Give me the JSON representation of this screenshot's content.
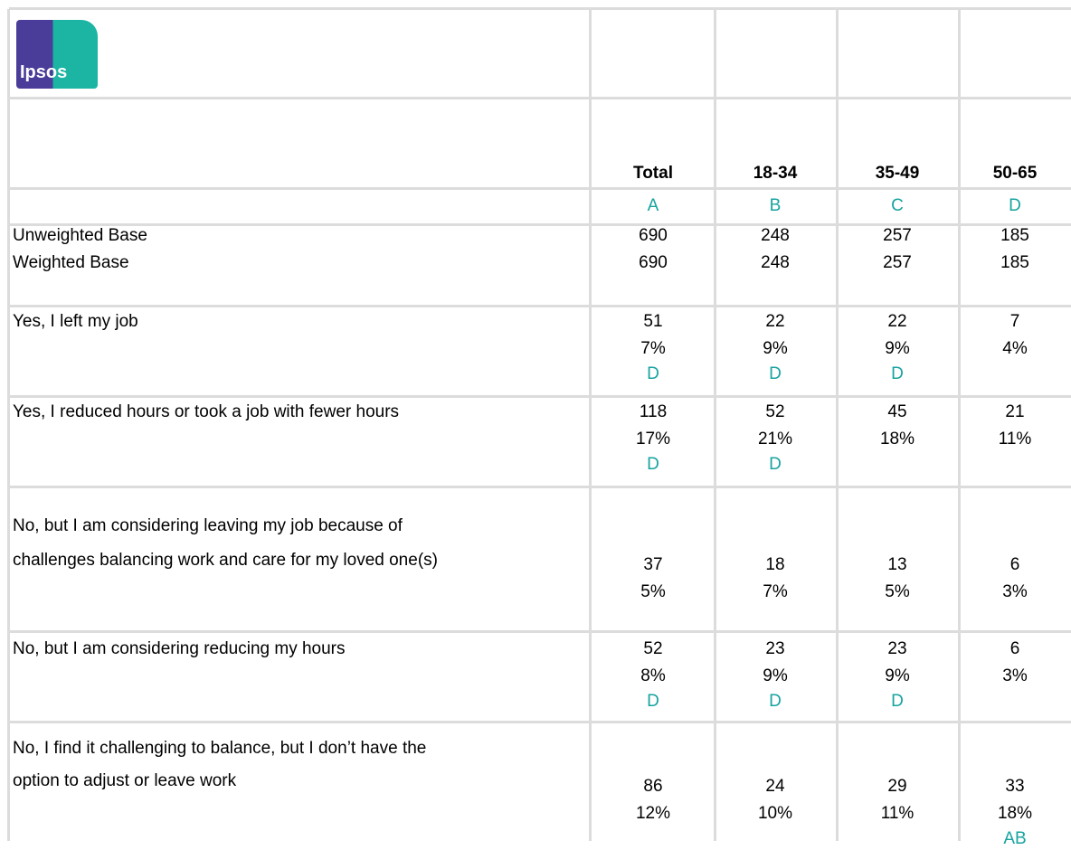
{
  "header": {
    "logo": "Ipsos"
  },
  "columns": [
    "Total",
    "18-34",
    "35-49",
    "50-65"
  ],
  "letters": [
    "A",
    "B",
    "C",
    "D"
  ],
  "bases": [
    {
      "label": "Unweighted Base",
      "values": [
        "690",
        "248",
        "257",
        "185"
      ]
    },
    {
      "label": "Weighted Base",
      "values": [
        "690",
        "248",
        "257",
        "185"
      ]
    }
  ],
  "rows": [
    {
      "label_lines": [
        "Yes, I left my job"
      ],
      "counts": [
        "51",
        "22",
        "22",
        "7"
      ],
      "percents": [
        "7%",
        "9%",
        "9%",
        "4%"
      ],
      "sig": [
        "D",
        "D",
        "D",
        null
      ]
    },
    {
      "label_lines": [
        "Yes, I reduced hours or took a job with fewer hours"
      ],
      "counts": [
        "118",
        "52",
        "45",
        "21"
      ],
      "percents": [
        "17%",
        "21%",
        "18%",
        "11%"
      ],
      "sig": [
        "D",
        "D",
        null,
        null
      ]
    },
    {
      "label_lines": [
        "No, but I am considering leaving my job because of",
        "challenges balancing work and care for my loved one(s)"
      ],
      "counts": [
        "37",
        "18",
        "13",
        "6"
      ],
      "percents": [
        "5%",
        "7%",
        "5%",
        "3%"
      ],
      "sig": [
        null,
        null,
        null,
        null
      ]
    },
    {
      "label_lines": [
        "No, but I am considering reducing my hours"
      ],
      "counts": [
        "52",
        "23",
        "23",
        "6"
      ],
      "percents": [
        "8%",
        "9%",
        "9%",
        "3%"
      ],
      "sig": [
        "D",
        "D",
        "D",
        null
      ]
    },
    {
      "label_lines": [
        "No, I find it challenging to balance, but I don’t have the",
        "option to adjust or leave work"
      ],
      "counts": [
        "86",
        "24",
        "29",
        "33"
      ],
      "percents": [
        "12%",
        "10%",
        "11%",
        "18%"
      ],
      "sig": [
        null,
        null,
        null,
        "AB"
      ]
    }
  ]
}
